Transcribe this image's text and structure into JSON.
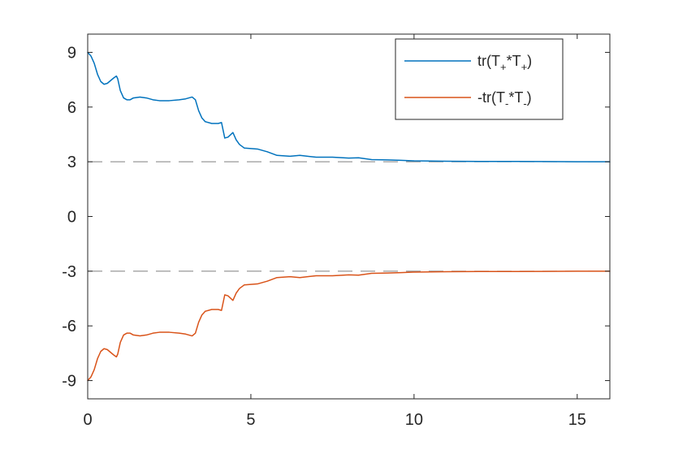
{
  "chart_data": {
    "type": "line",
    "title": "",
    "xlabel": "",
    "ylabel": "",
    "xlim": [
      0,
      16
    ],
    "ylim": [
      -10,
      10
    ],
    "x_ticks": [
      "0",
      "5",
      "10",
      "15"
    ],
    "y_ticks": [
      "9",
      "6",
      "3",
      "0",
      "-3",
      "-6",
      "-9"
    ],
    "grid": false,
    "legend_position": "top-right",
    "reference_lines": [
      {
        "y": 3,
        "style": "dashed",
        "color": "#7f7f7f"
      },
      {
        "y": -3,
        "style": "dashed",
        "color": "#7f7f7f"
      }
    ],
    "series": [
      {
        "name": "tr(T+*T+)",
        "legend": {
          "base": "tr(T",
          "sub1": "+",
          "mid": "*T",
          "sub2": "+",
          "end": ")"
        },
        "color": "#0072BD",
        "points": [
          [
            0.0,
            9.0
          ],
          [
            0.1,
            8.8
          ],
          [
            0.2,
            8.4
          ],
          [
            0.3,
            7.8
          ],
          [
            0.4,
            7.4
          ],
          [
            0.5,
            7.25
          ],
          [
            0.6,
            7.3
          ],
          [
            0.7,
            7.45
          ],
          [
            0.8,
            7.6
          ],
          [
            0.88,
            7.7
          ],
          [
            0.92,
            7.55
          ],
          [
            1.0,
            6.9
          ],
          [
            1.1,
            6.5
          ],
          [
            1.2,
            6.4
          ],
          [
            1.3,
            6.4
          ],
          [
            1.4,
            6.5
          ],
          [
            1.6,
            6.55
          ],
          [
            1.8,
            6.5
          ],
          [
            2.0,
            6.4
          ],
          [
            2.2,
            6.35
          ],
          [
            2.5,
            6.35
          ],
          [
            2.8,
            6.4
          ],
          [
            3.0,
            6.45
          ],
          [
            3.2,
            6.55
          ],
          [
            3.3,
            6.4
          ],
          [
            3.4,
            5.8
          ],
          [
            3.5,
            5.4
          ],
          [
            3.6,
            5.2
          ],
          [
            3.8,
            5.1
          ],
          [
            4.0,
            5.1
          ],
          [
            4.1,
            5.15
          ],
          [
            4.2,
            4.3
          ],
          [
            4.3,
            4.35
          ],
          [
            4.45,
            4.6
          ],
          [
            4.55,
            4.2
          ],
          [
            4.65,
            3.95
          ],
          [
            4.8,
            3.75
          ],
          [
            5.2,
            3.7
          ],
          [
            5.5,
            3.55
          ],
          [
            5.8,
            3.35
          ],
          [
            6.2,
            3.3
          ],
          [
            6.5,
            3.35
          ],
          [
            7.0,
            3.25
          ],
          [
            7.5,
            3.25
          ],
          [
            8.0,
            3.2
          ],
          [
            8.3,
            3.22
          ],
          [
            8.7,
            3.12
          ],
          [
            9.2,
            3.1
          ],
          [
            9.6,
            3.08
          ],
          [
            10.0,
            3.05
          ],
          [
            11.0,
            3.03
          ],
          [
            12.0,
            3.02
          ],
          [
            13.0,
            3.02
          ],
          [
            14.0,
            3.01
          ],
          [
            15.0,
            3.0
          ],
          [
            16.0,
            3.0
          ]
        ]
      },
      {
        "name": "-tr(T-*T-)",
        "legend": {
          "base": "-tr(T",
          "sub1": "-",
          "mid": "*T",
          "sub2": "-",
          "end": ")"
        },
        "color": "#D95319",
        "points": [
          [
            0.0,
            -9.0
          ],
          [
            0.1,
            -8.8
          ],
          [
            0.2,
            -8.4
          ],
          [
            0.3,
            -7.8
          ],
          [
            0.4,
            -7.4
          ],
          [
            0.5,
            -7.25
          ],
          [
            0.6,
            -7.3
          ],
          [
            0.7,
            -7.45
          ],
          [
            0.8,
            -7.6
          ],
          [
            0.88,
            -7.7
          ],
          [
            0.92,
            -7.55
          ],
          [
            1.0,
            -6.9
          ],
          [
            1.1,
            -6.5
          ],
          [
            1.2,
            -6.4
          ],
          [
            1.3,
            -6.4
          ],
          [
            1.4,
            -6.5
          ],
          [
            1.6,
            -6.55
          ],
          [
            1.8,
            -6.5
          ],
          [
            2.0,
            -6.4
          ],
          [
            2.2,
            -6.35
          ],
          [
            2.5,
            -6.35
          ],
          [
            2.8,
            -6.4
          ],
          [
            3.0,
            -6.45
          ],
          [
            3.2,
            -6.55
          ],
          [
            3.3,
            -6.4
          ],
          [
            3.4,
            -5.8
          ],
          [
            3.5,
            -5.4
          ],
          [
            3.6,
            -5.2
          ],
          [
            3.8,
            -5.1
          ],
          [
            4.0,
            -5.1
          ],
          [
            4.1,
            -5.15
          ],
          [
            4.2,
            -4.3
          ],
          [
            4.3,
            -4.35
          ],
          [
            4.45,
            -4.6
          ],
          [
            4.55,
            -4.2
          ],
          [
            4.65,
            -3.95
          ],
          [
            4.8,
            -3.75
          ],
          [
            5.2,
            -3.7
          ],
          [
            5.5,
            -3.55
          ],
          [
            5.8,
            -3.35
          ],
          [
            6.2,
            -3.3
          ],
          [
            6.5,
            -3.35
          ],
          [
            7.0,
            -3.25
          ],
          [
            7.5,
            -3.25
          ],
          [
            8.0,
            -3.2
          ],
          [
            8.3,
            -3.22
          ],
          [
            8.7,
            -3.12
          ],
          [
            9.2,
            -3.1
          ],
          [
            9.6,
            -3.08
          ],
          [
            10.0,
            -3.05
          ],
          [
            11.0,
            -3.03
          ],
          [
            12.0,
            -3.02
          ],
          [
            13.0,
            -3.02
          ],
          [
            14.0,
            -3.01
          ],
          [
            15.0,
            -3.0
          ],
          [
            16.0,
            -3.0
          ]
        ]
      }
    ]
  }
}
